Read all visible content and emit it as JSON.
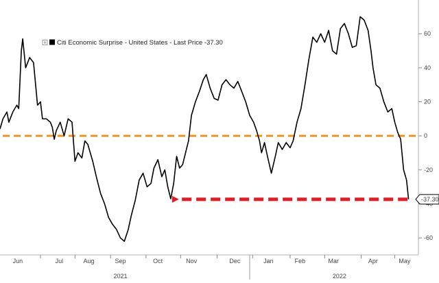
{
  "chart_data": {
    "type": "line",
    "legend": "Citi Economic Surprise - United States - Last Price -37.30",
    "last_value_label": "-37.30",
    "series": [
      {
        "name": "Citi Economic Surprise - United States",
        "color": "#000000",
        "points": [
          [
            0,
            4
          ],
          [
            1.5,
            10
          ],
          [
            3.5,
            14
          ],
          [
            4.5,
            8
          ],
          [
            6.5,
            14
          ],
          [
            8.5,
            18
          ],
          [
            9.5,
            16
          ],
          [
            10.8,
            50
          ],
          [
            11.5,
            57
          ],
          [
            13,
            40
          ],
          [
            15,
            46
          ],
          [
            17,
            43
          ],
          [
            19,
            18
          ],
          [
            20.5,
            20
          ],
          [
            21.5,
            10
          ],
          [
            23.5,
            10
          ],
          [
            25.5,
            8
          ],
          [
            26.5,
            5
          ],
          [
            27.5,
            -2
          ],
          [
            28.5,
            3
          ],
          [
            30.5,
            8
          ],
          [
            32.5,
            0
          ],
          [
            34.5,
            10
          ],
          [
            36.5,
            8
          ],
          [
            38,
            -15
          ],
          [
            39.5,
            -10
          ],
          [
            41.5,
            -13
          ],
          [
            43,
            -3
          ],
          [
            44.5,
            -5
          ],
          [
            47,
            -15
          ],
          [
            49,
            -25
          ],
          [
            51,
            -34
          ],
          [
            53,
            -40
          ],
          [
            55,
            -48
          ],
          [
            57,
            -52
          ],
          [
            59,
            -55
          ],
          [
            61,
            -60
          ],
          [
            63,
            -62
          ],
          [
            65,
            -55
          ],
          [
            66.5,
            -47
          ],
          [
            68.5,
            -38
          ],
          [
            70.5,
            -26
          ],
          [
            72.5,
            -22
          ],
          [
            74.5,
            -30
          ],
          [
            76.5,
            -28
          ],
          [
            78,
            -19
          ],
          [
            80,
            -14
          ],
          [
            82,
            -24
          ],
          [
            83.5,
            -20
          ],
          [
            85,
            -30
          ],
          [
            86.5,
            -37
          ],
          [
            88,
            -28
          ],
          [
            89.5,
            -12
          ],
          [
            91,
            -19
          ],
          [
            92.5,
            -17
          ],
          [
            94,
            -10
          ],
          [
            95.5,
            -3
          ],
          [
            97,
            12
          ],
          [
            99,
            20
          ],
          [
            101,
            26
          ],
          [
            103,
            33
          ],
          [
            104.5,
            36
          ],
          [
            106.5,
            28
          ],
          [
            108.5,
            22
          ],
          [
            110.5,
            21
          ],
          [
            112.5,
            30
          ],
          [
            114.5,
            33
          ],
          [
            116.5,
            30
          ],
          [
            118.5,
            28
          ],
          [
            120.5,
            32
          ],
          [
            122.5,
            26
          ],
          [
            124.5,
            20
          ],
          [
            126.5,
            12
          ],
          [
            128.5,
            8
          ],
          [
            130,
            3
          ],
          [
            131.5,
            -3
          ],
          [
            132.5,
            -10
          ],
          [
            134,
            -4
          ],
          [
            135.5,
            -12
          ],
          [
            137.5,
            -22
          ],
          [
            139.5,
            -12
          ],
          [
            141,
            -4
          ],
          [
            143,
            -8
          ],
          [
            145,
            -4
          ],
          [
            147,
            -7
          ],
          [
            148.5,
            -3
          ],
          [
            150.5,
            8
          ],
          [
            152.5,
            16
          ],
          [
            154.5,
            30
          ],
          [
            156.5,
            45
          ],
          [
            158.5,
            58
          ],
          [
            160.5,
            55
          ],
          [
            162.5,
            60
          ],
          [
            164.5,
            55
          ],
          [
            166.5,
            62
          ],
          [
            168.5,
            50
          ],
          [
            170.5,
            48
          ],
          [
            172.5,
            63
          ],
          [
            174.5,
            66
          ],
          [
            176.5,
            60
          ],
          [
            178.5,
            52
          ],
          [
            180.5,
            53
          ],
          [
            182.5,
            70
          ],
          [
            184.5,
            68
          ],
          [
            186.5,
            62
          ],
          [
            188,
            50
          ],
          [
            189,
            40
          ],
          [
            190.5,
            30
          ],
          [
            192.5,
            28
          ],
          [
            194.5,
            20
          ],
          [
            196.5,
            14
          ],
          [
            198.5,
            16
          ],
          [
            200,
            8
          ],
          [
            201.5,
            2
          ],
          [
            203,
            -2
          ],
          [
            204.5,
            -20
          ],
          [
            206,
            -26
          ],
          [
            207,
            -37.3
          ]
        ]
      }
    ],
    "reference_line": {
      "y": 0,
      "color": "#f7941d",
      "style": "dashed"
    },
    "arrow": {
      "y": -37.3,
      "x_from": 206.5,
      "x_to": 86.5,
      "color": "#e31b23",
      "style": "dashed"
    },
    "x_axis": {
      "month_labels": [
        {
          "label": "Jun",
          "x": 9
        },
        {
          "label": "Jul",
          "x": 30
        },
        {
          "label": "Aug",
          "x": 45
        },
        {
          "label": "Sep",
          "x": 61
        },
        {
          "label": "Oct",
          "x": 80
        },
        {
          "label": "Nov",
          "x": 97
        },
        {
          "label": "Dec",
          "x": 119
        },
        {
          "label": "Jan",
          "x": 136
        },
        {
          "label": "Feb",
          "x": 152
        },
        {
          "label": "Mar",
          "x": 169
        },
        {
          "label": "Apr",
          "x": 189
        },
        {
          "label": "May",
          "x": 205
        }
      ],
      "month_ticks": [
        20.5,
        38,
        56,
        74,
        91.5,
        110,
        128,
        147,
        164.5,
        183,
        200
      ],
      "year_labels": [
        {
          "label": "2021",
          "x": 61
        },
        {
          "label": "2022",
          "x": 172
        }
      ],
      "year_divider": 126.5,
      "range": [
        0,
        212
      ]
    },
    "y_axis": {
      "position": "right",
      "ticks": [
        60,
        40,
        20,
        0,
        -20,
        -40,
        -60
      ],
      "range": [
        -70,
        75
      ]
    },
    "grid": false
  }
}
